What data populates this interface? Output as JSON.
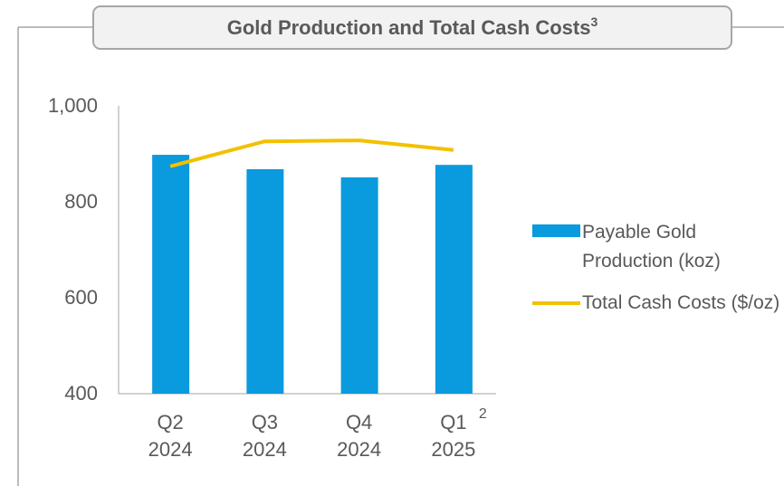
{
  "chart_data": {
    "type": "bar_line",
    "title": "Gold Production and Total Cash Costs",
    "title_note": "3",
    "categories": [
      "Q2\n2024",
      "Q3\n2024",
      "Q4\n2024",
      "Q1\n2025"
    ],
    "category_note": "2",
    "series": [
      {
        "name": "Payable Gold Production (koz)",
        "type": "bar",
        "color": "#0a9ade",
        "values": [
          898,
          868,
          851,
          877
        ]
      },
      {
        "name": "Total Cash Costs ($/oz)",
        "type": "line",
        "color": "#f2c100",
        "values": [
          874,
          926,
          928,
          908
        ]
      }
    ],
    "ylim": [
      400,
      1000
    ],
    "yticks": [
      400,
      600,
      800,
      {
        "value": 1000,
        "label": "1,000"
      }
    ],
    "grid": false,
    "legend": "right"
  }
}
